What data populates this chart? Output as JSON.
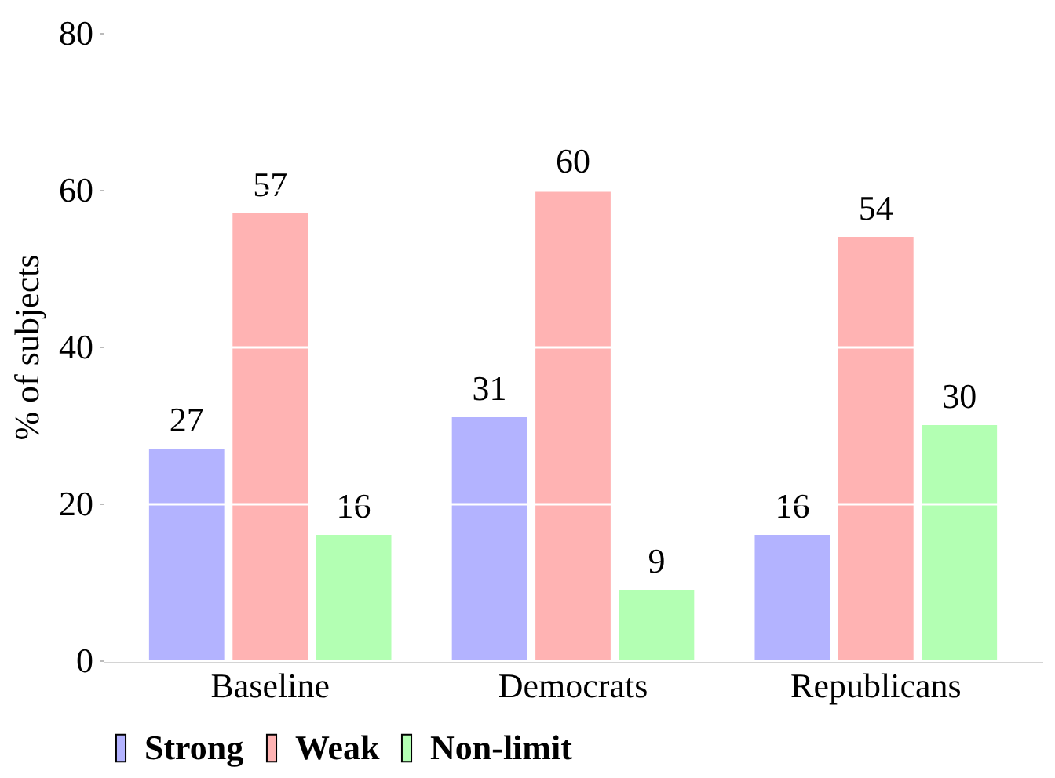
{
  "chart_data": {
    "type": "bar",
    "ylabel": "% of subjects",
    "categories": [
      "Baseline",
      "Democrats",
      "Republicans"
    ],
    "series": [
      {
        "name": "Strong",
        "color": "#b3b3ff",
        "values": [
          27,
          31,
          16
        ]
      },
      {
        "name": "Weak",
        "color": "#ffb3b3",
        "values": [
          57,
          60,
          54
        ]
      },
      {
        "name": "Non-limit",
        "color": "#b3ffb3",
        "values": [
          16,
          9,
          30
        ]
      }
    ],
    "ylim": [
      0,
      80
    ],
    "yticks": [
      0,
      20,
      40,
      60,
      80
    ],
    "grid": "y",
    "legend": "bottom",
    "data_labels": true
  }
}
